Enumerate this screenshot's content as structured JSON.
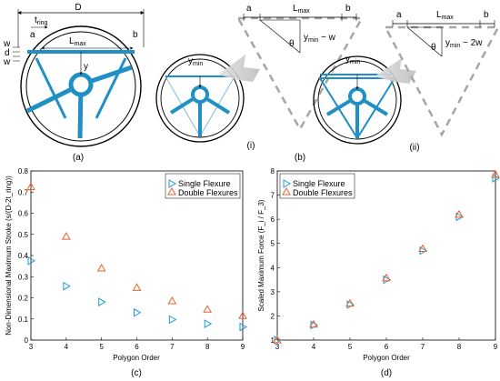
{
  "figure": {
    "top_labels": {
      "D": "D",
      "t_ring": "t",
      "t_ring_sub": "ring",
      "a": "a",
      "b": "b",
      "L_max": "L",
      "L_max_sub": "max",
      "w": "w",
      "d": "d",
      "y": "y",
      "y_min": "y",
      "y_min_sub": "min",
      "theta": "θ",
      "expr_i_main": "y",
      "expr_i_sub": "min",
      "expr_i_rest": " − w",
      "expr_ii_main": "y",
      "expr_ii_sub": "min",
      "expr_ii_rest": " − 2w"
    },
    "captions": {
      "a": "(a)",
      "b": "(b)",
      "i": "(i)",
      "ii": "(ii)",
      "c": "(c)",
      "d": "(d)"
    },
    "colors": {
      "flexure": "#1f8fc4",
      "single_marker": "#1f9bd8",
      "double_marker": "#e8622a",
      "dashed": "#a6a6a6"
    }
  },
  "chart_data": [
    {
      "type": "scatter",
      "panel": "(c)",
      "xlabel": "Polygon Order",
      "ylabel": "Non-Dimensional Maximum Stroke (s/(D-2t_ring))",
      "xlim": [
        3,
        9
      ],
      "ylim": [
        0,
        0.8
      ],
      "xticks": [
        "3",
        "4",
        "5",
        "6",
        "7",
        "8",
        "9"
      ],
      "yticks": [
        "0",
        "0.1",
        "0.2",
        "0.3",
        "0.4",
        "0.5",
        "0.6",
        "0.7",
        "0.8"
      ],
      "legend_position": "top-right",
      "series": [
        {
          "name": "Single Flexure",
          "marker": "triangle-right",
          "x": [
            3,
            4,
            5,
            6,
            7,
            8,
            9
          ],
          "y": [
            0.375,
            0.255,
            0.18,
            0.13,
            0.097,
            0.077,
            0.062
          ]
        },
        {
          "name": "Double Flexures",
          "marker": "triangle-up",
          "x": [
            3,
            4,
            5,
            6,
            7,
            8,
            9
          ],
          "y": [
            0.725,
            0.49,
            0.34,
            0.248,
            0.185,
            0.145,
            0.115
          ]
        }
      ]
    },
    {
      "type": "scatter",
      "panel": "(d)",
      "xlabel": "Polygon Order",
      "ylabel": "Scaled Maximum Force (F_i / F_3)",
      "xlim": [
        3,
        9
      ],
      "ylim": [
        1,
        8
      ],
      "xticks": [
        "3",
        "4",
        "5",
        "6",
        "7",
        "8",
        "9"
      ],
      "yticks": [
        "1",
        "2",
        "3",
        "4",
        "5",
        "6",
        "7",
        "8"
      ],
      "legend_position": "top-left",
      "series": [
        {
          "name": "Single Flexure",
          "marker": "triangle-right",
          "x": [
            3,
            4,
            5,
            6,
            7,
            8,
            9
          ],
          "y": [
            1.0,
            1.62,
            2.47,
            3.5,
            4.7,
            6.1,
            7.7
          ]
        },
        {
          "name": "Double Flexures",
          "marker": "triangle-up",
          "x": [
            3,
            4,
            5,
            6,
            7,
            8,
            9
          ],
          "y": [
            1.0,
            1.65,
            2.52,
            3.57,
            4.78,
            6.2,
            7.85
          ]
        }
      ]
    }
  ]
}
